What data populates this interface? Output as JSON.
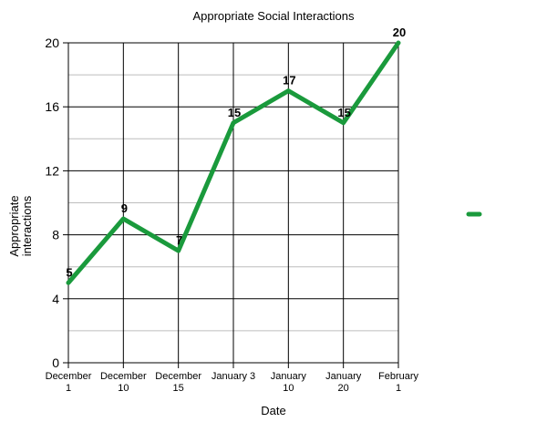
{
  "chart_data": {
    "type": "line",
    "title": "Appropriate Social Interactions",
    "xlabel": "Date",
    "ylabel": "Appropriate interactions",
    "ylim": [
      0,
      20
    ],
    "y_major_ticks": [
      0,
      4,
      8,
      12,
      16,
      20
    ],
    "y_minor_step": 2,
    "grid": true,
    "legend_placement": "right",
    "categories": [
      [
        "December",
        "1"
      ],
      [
        "December",
        "10"
      ],
      [
        "December",
        "15"
      ],
      [
        "January 3"
      ],
      [
        "January",
        "10"
      ],
      [
        "January",
        "20"
      ],
      [
        "February",
        "1"
      ]
    ],
    "series": [
      {
        "color": "#1a9a3c",
        "values": [
          5,
          9,
          7,
          15,
          17,
          15,
          20
        ]
      }
    ]
  }
}
